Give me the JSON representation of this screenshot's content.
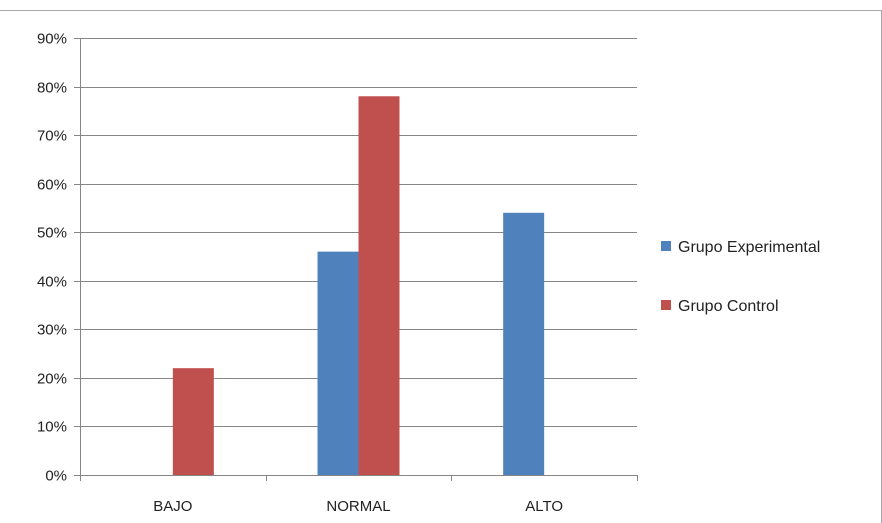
{
  "chart_data": {
    "type": "bar",
    "categories": [
      "BAJO",
      "NORMAL",
      "ALTO"
    ],
    "series": [
      {
        "name": "Grupo Experimental",
        "values": [
          0,
          46,
          54
        ],
        "color": "#4f81bd"
      },
      {
        "name": "Grupo Control",
        "values": [
          22,
          78,
          0
        ],
        "color": "#c0504d"
      }
    ],
    "y_ticks": [
      "0%",
      "10%",
      "20%",
      "30%",
      "40%",
      "50%",
      "60%",
      "70%",
      "80%",
      "90%"
    ],
    "ylim": [
      0,
      90
    ],
    "y_unit": "%",
    "grid": true,
    "legend_position": "right",
    "gridline_color": "#868686",
    "axis_color": "#868686"
  }
}
